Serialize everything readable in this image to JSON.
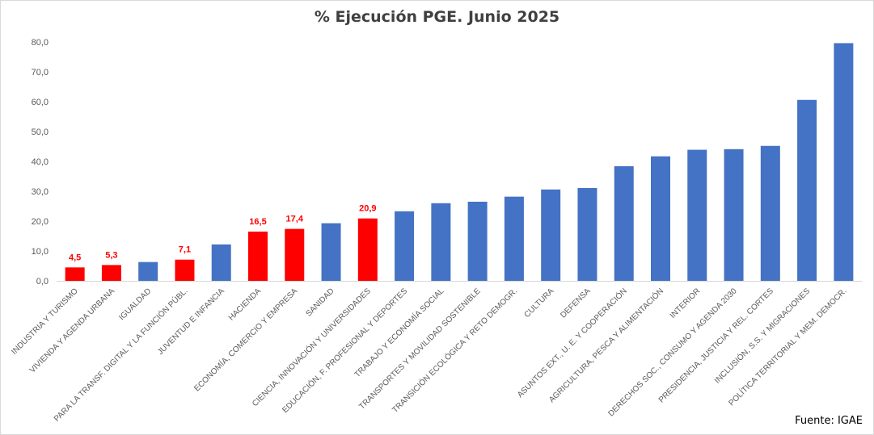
{
  "chart_data": {
    "type": "bar",
    "title": "% Ejecución PGE. Junio 2025",
    "source": "Fuente: IGAE",
    "ylim": [
      0,
      80
    ],
    "yticks": [
      "0,0",
      "10,0",
      "20,0",
      "30,0",
      "40,0",
      "50,0",
      "60,0",
      "70,0",
      "80,0"
    ],
    "grid": false,
    "colors": {
      "default": "#4472c4",
      "highlight": "#ff0000"
    },
    "categories": [
      "INDUSTRIA Y TURISMO",
      "VIVIENDA Y AGENDA URBANA",
      "IGUALDAD",
      "PARA LA TRANSF. DIGITAL Y LA FUNCIÓN PÚBL.",
      "JUVENTUD E INFANCIA",
      "HACIENDA",
      "ECONOMÍA, COMERCIO Y EMPRESA",
      "SANIDAD",
      "CIENCIA, INNOVACIÓN Y UNIVERSIDADES",
      "EDUCACIÓN, F. PROFESIONAL Y DEPORTES",
      "TRABAJO Y ECONOMÍA SOCIAL",
      "TRANSPORTES Y MOVILIDAD SOSTENIBLE",
      "TRANSICIÓN ECOLÓGICA Y RETO DEMOGR.",
      "CULTURA",
      "DEFENSA",
      "ASUNTOS EXT., U. E. Y COOPERACIÓN",
      "AGRICULTURA, PESCA Y ALIMENTACIÓN",
      "INTERIOR",
      "DERECHOS SOC., CONSUMO Y AGENDA 2030",
      "PRESIDENCIA, JUSTICIA Y REL. CORTES",
      "INCLUSIÓN, S.S. Y MIGRACIONES",
      "POLÍTICA TERRITORIAL Y MEM. DEMOCR."
    ],
    "values": [
      4.5,
      5.3,
      6.3,
      7.1,
      12.2,
      16.5,
      17.4,
      19.3,
      20.9,
      23.3,
      26.0,
      26.5,
      28.2,
      30.6,
      31.1,
      38.4,
      41.7,
      43.9,
      44.1,
      45.2,
      60.6,
      79.6
    ],
    "highlighted": [
      true,
      true,
      false,
      true,
      false,
      true,
      true,
      false,
      true,
      false,
      false,
      false,
      false,
      false,
      false,
      false,
      false,
      false,
      false,
      false,
      false,
      false
    ],
    "data_labels": [
      "4,5",
      "5,3",
      "",
      "7,1",
      "",
      "16,5",
      "17,4",
      "",
      "20,9",
      "",
      "",
      "",
      "",
      "",
      "",
      "",
      "",
      "",
      "",
      "",
      "",
      ""
    ]
  }
}
